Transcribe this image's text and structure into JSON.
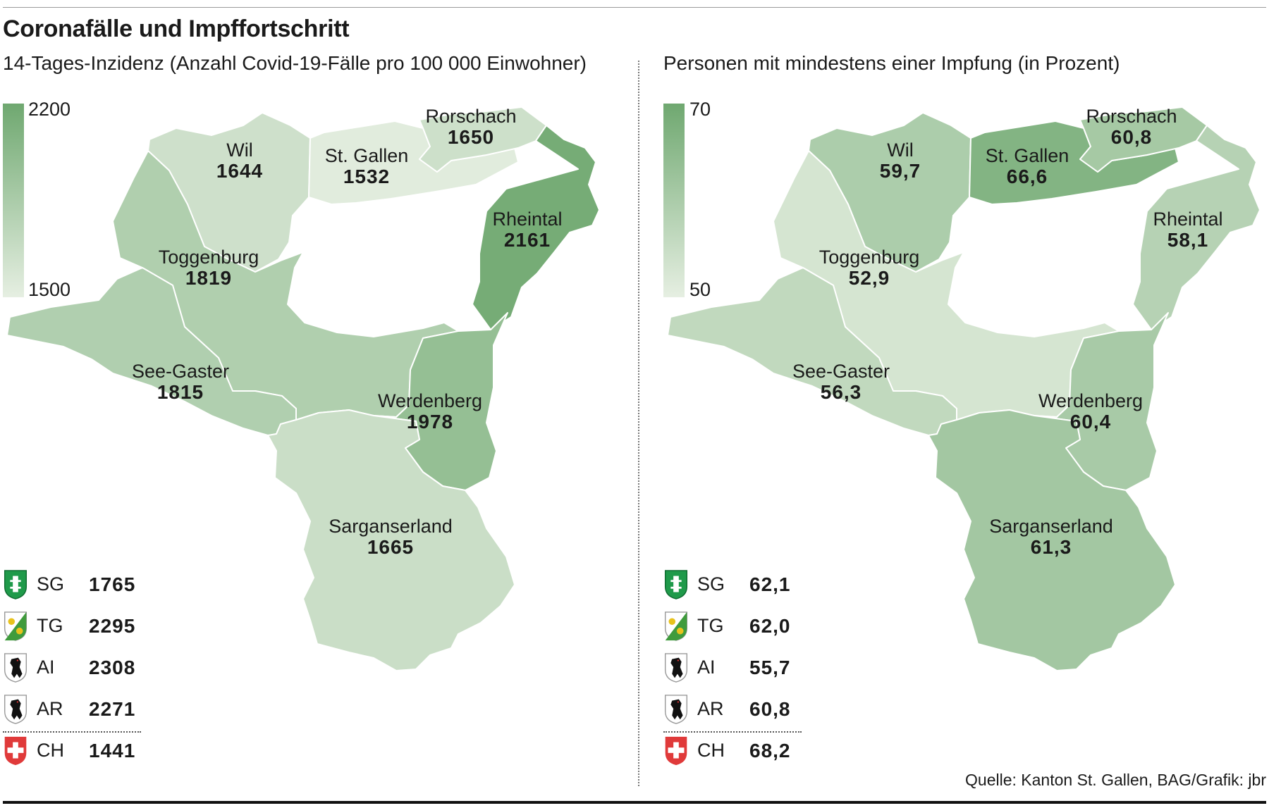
{
  "title": "Coronafälle und Impffortschritt",
  "source": "Quelle: Kanton St. Gallen, BAG/Grafik: jbr",
  "panels": [
    {
      "subtitle": "14-Tages-Inzidenz (Anzahl Covid-19-Fälle pro 100 000 Einwohner)",
      "scale": {
        "max_label": "2200",
        "min_label": "1500",
        "max": 2200,
        "min": 1500
      },
      "regions": [
        {
          "name": "Wil",
          "value": "1644"
        },
        {
          "name": "St. Gallen",
          "value": "1532"
        },
        {
          "name": "Rorschach",
          "value": "1650"
        },
        {
          "name": "Rheintal",
          "value": "2161"
        },
        {
          "name": "Toggenburg",
          "value": "1819"
        },
        {
          "name": "See-Gaster",
          "value": "1815"
        },
        {
          "name": "Werdenberg",
          "value": "1978"
        },
        {
          "name": "Sarganserland",
          "value": "1665"
        }
      ],
      "legend": [
        {
          "code": "SG",
          "value": "1765"
        },
        {
          "code": "TG",
          "value": "2295"
        },
        {
          "code": "AI",
          "value": "2308"
        },
        {
          "code": "AR",
          "value": "2271"
        },
        {
          "code": "CH",
          "value": "1441"
        }
      ]
    },
    {
      "subtitle": "Personen mit mindestens einer Impfung (in Prozent)",
      "scale": {
        "max_label": "70",
        "min_label": "50",
        "max": 70,
        "min": 50
      },
      "regions": [
        {
          "name": "Wil",
          "value": "59,7"
        },
        {
          "name": "St. Gallen",
          "value": "66,6"
        },
        {
          "name": "Rorschach",
          "value": "60,8"
        },
        {
          "name": "Rheintal",
          "value": "58,1"
        },
        {
          "name": "Toggenburg",
          "value": "52,9"
        },
        {
          "name": "See-Gaster",
          "value": "56,3"
        },
        {
          "name": "Werdenberg",
          "value": "60,4"
        },
        {
          "name": "Sarganserland",
          "value": "61,3"
        }
      ],
      "legend": [
        {
          "code": "SG",
          "value": "62,1"
        },
        {
          "code": "TG",
          "value": "62,0"
        },
        {
          "code": "AI",
          "value": "55,7"
        },
        {
          "code": "AR",
          "value": "60,8"
        },
        {
          "code": "CH",
          "value": "68,2"
        }
      ]
    }
  ],
  "colors": {
    "scale_low": "#e6efe2",
    "scale_high": "#6fa870",
    "swiss_red": "#e03a3a",
    "sg_green": "#1f9a4a"
  }
}
